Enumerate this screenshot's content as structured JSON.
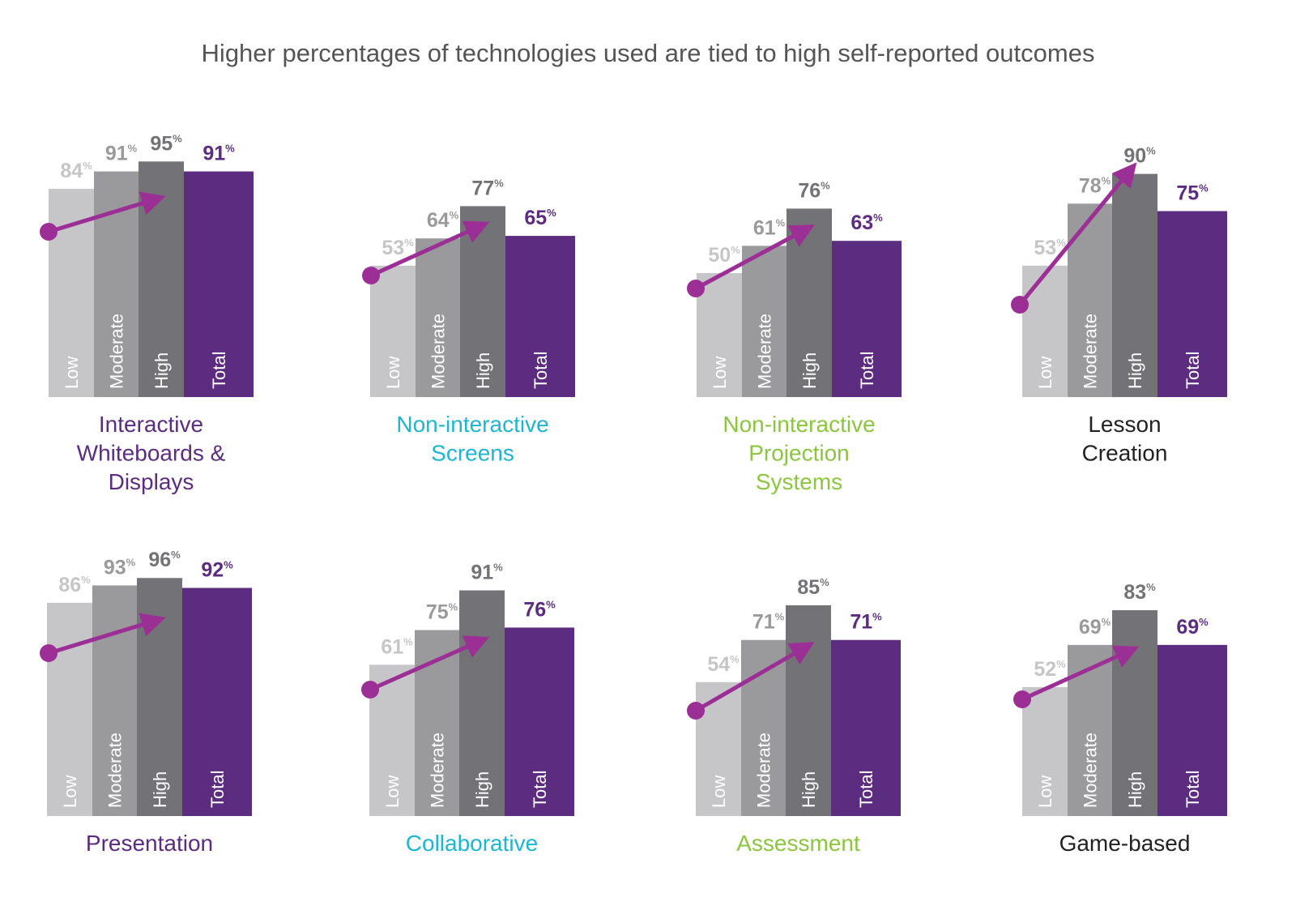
{
  "title": "Higher percentages of technologies used are tied to high self-reported outcomes",
  "colors": {
    "Low": "#c6c5c7",
    "Moderate": "#9a999c",
    "High": "#737276",
    "Total": "#5b2c7f",
    "arrow": "#9b2f96",
    "title": "#555555"
  },
  "chart_data": [
    {
      "type": "bar",
      "title_lines": [
        "Interactive",
        "Whiteboards &",
        "Displays"
      ],
      "title_color": "#5b2c7f",
      "categories": [
        "Low",
        "Moderate",
        "High",
        "Total"
      ],
      "values": [
        84,
        91,
        95,
        91
      ],
      "unit": "%"
    },
    {
      "type": "bar",
      "title_lines": [
        "Non-interactive",
        "Screens"
      ],
      "title_color": "#1fb5d0",
      "categories": [
        "Low",
        "Moderate",
        "High",
        "Total"
      ],
      "values": [
        53,
        64,
        77,
        65
      ],
      "unit": "%"
    },
    {
      "type": "bar",
      "title_lines": [
        "Non-interactive",
        "Projection",
        "Systems"
      ],
      "title_color": "#8cc540",
      "categories": [
        "Low",
        "Moderate",
        "High",
        "Total"
      ],
      "values": [
        50,
        61,
        76,
        63
      ],
      "unit": "%"
    },
    {
      "type": "bar",
      "title_lines": [
        "Lesson",
        "Creation"
      ],
      "title_color": "#222222",
      "categories": [
        "Low",
        "Moderate",
        "High",
        "Total"
      ],
      "values": [
        53,
        78,
        90,
        75
      ],
      "unit": "%"
    },
    {
      "type": "bar",
      "title_lines": [
        "Presentation"
      ],
      "title_color": "#5b2c7f",
      "categories": [
        "Low",
        "Moderate",
        "High",
        "Total"
      ],
      "values": [
        86,
        93,
        96,
        92
      ],
      "unit": "%"
    },
    {
      "type": "bar",
      "title_lines": [
        "Collaborative"
      ],
      "title_color": "#1fb5d0",
      "categories": [
        "Low",
        "Moderate",
        "High",
        "Total"
      ],
      "values": [
        61,
        75,
        91,
        76
      ],
      "unit": "%"
    },
    {
      "type": "bar",
      "title_lines": [
        "Assessment"
      ],
      "title_color": "#8cc540",
      "categories": [
        "Low",
        "Moderate",
        "High",
        "Total"
      ],
      "values": [
        54,
        71,
        85,
        71
      ],
      "unit": "%"
    },
    {
      "type": "bar",
      "title_lines": [
        "Game-based"
      ],
      "title_color": "#222222",
      "categories": [
        "Low",
        "Moderate",
        "High",
        "Total"
      ],
      "values": [
        52,
        69,
        83,
        69
      ],
      "unit": "%"
    }
  ]
}
